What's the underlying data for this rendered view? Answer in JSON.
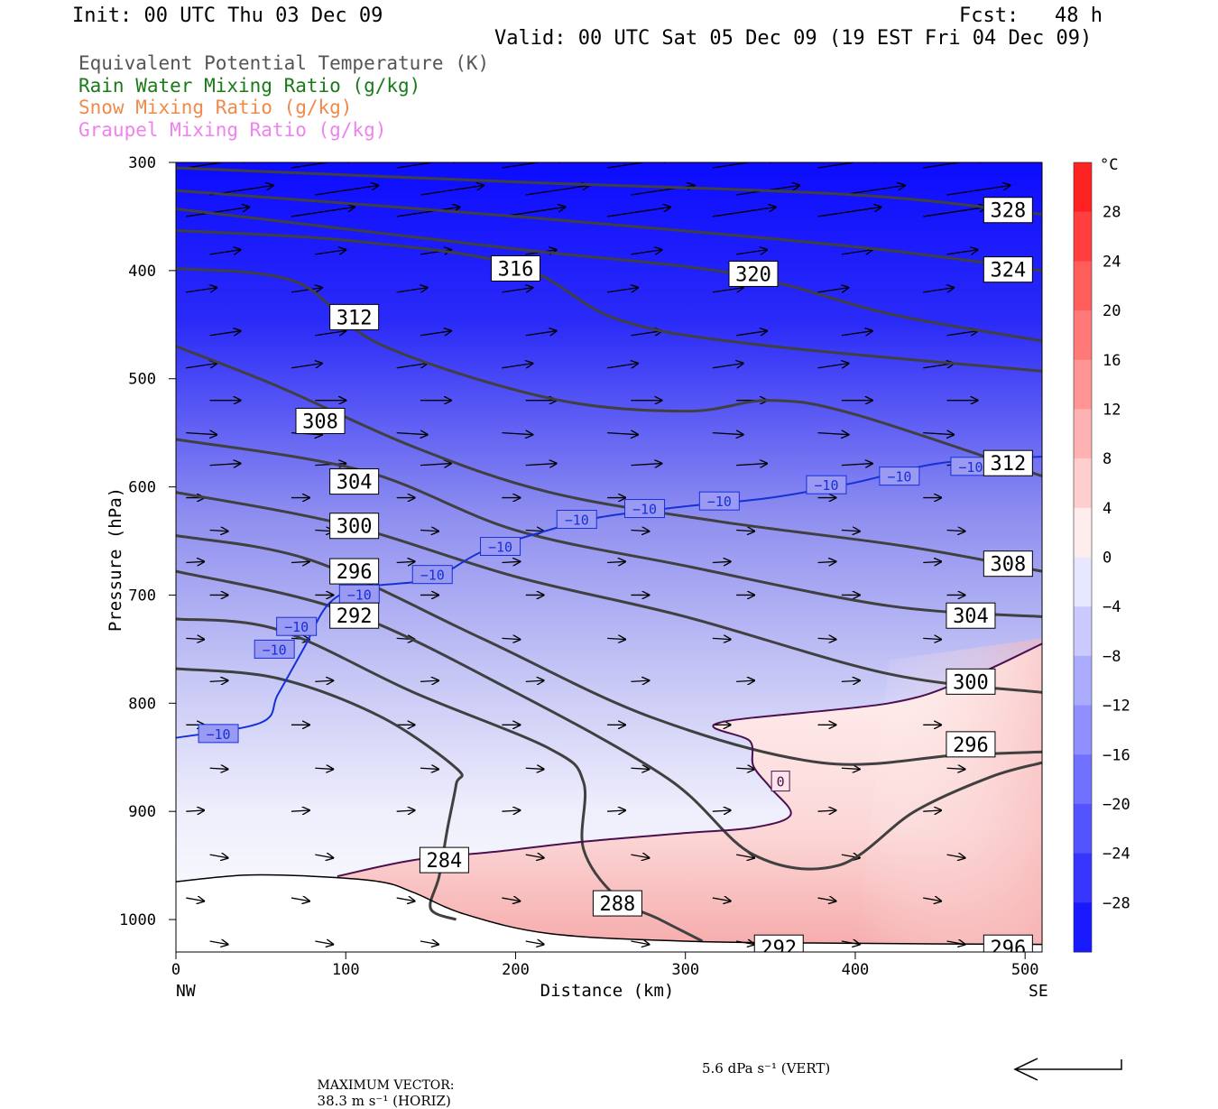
{
  "header": {
    "init": "Init: 00 UTC Thu 03 Dec 09",
    "fcst": "Fcst:   48 h",
    "valid": "Valid: 00 UTC Sat 05 Dec 09 (19 EST Fri 04 Dec 09)"
  },
  "legend": [
    {
      "label": "Equivalent Potential Temperature (K)",
      "color": "#555555"
    },
    {
      "label": "Rain Water Mixing Ratio (g/kg)",
      "color": "#1a7a1a"
    },
    {
      "label": "Snow Mixing Ratio (g/kg)",
      "color": "#f08a4b"
    },
    {
      "label": "Graupel Mixing Ratio (g/kg)",
      "color": "#ee82ee"
    }
  ],
  "chart_data": {
    "type": "heatmap",
    "description_source": "vertical cross-section",
    "xlabel": "Distance (km)",
    "ylabel": "Pressure (hPa)",
    "xlim": [
      0,
      510
    ],
    "ylim": [
      300,
      1030
    ],
    "x_ticks": [
      0,
      100,
      200,
      300,
      400,
      500
    ],
    "y_ticks": [
      300,
      400,
      500,
      600,
      700,
      800,
      900,
      1000
    ],
    "x_end_labels": {
      "left": "NW",
      "right": "SE"
    },
    "colorbar": {
      "unit": "°C",
      "range": [
        -32,
        32
      ],
      "ticks": [
        "28",
        "24",
        "20",
        "16",
        "12",
        "8",
        "4",
        "0",
        "−4",
        "−8",
        "−12",
        "−16",
        "−20",
        "−24",
        "−28"
      ]
    },
    "theta_e_contours": [
      {
        "value": 328,
        "points": [
          [
            0,
            305
          ],
          [
            200,
            318
          ],
          [
            400,
            330
          ],
          [
            510,
            348
          ]
        ]
      },
      {
        "value": 324,
        "points": [
          [
            0,
            326
          ],
          [
            200,
            350
          ],
          [
            400,
            378
          ],
          [
            510,
            400
          ]
        ]
      },
      {
        "value": 320,
        "points": [
          [
            0,
            343
          ],
          [
            200,
            380
          ],
          [
            330,
            403
          ],
          [
            420,
            440
          ],
          [
            510,
            465
          ]
        ]
      },
      {
        "value": 316,
        "points": [
          [
            0,
            363
          ],
          [
            100,
            372
          ],
          [
            200,
            395
          ],
          [
            260,
            445
          ],
          [
            340,
            468
          ],
          [
            510,
            493
          ]
        ]
      },
      {
        "value": 312,
        "points": [
          [
            0,
            398
          ],
          [
            70,
            410
          ],
          [
            120,
            468
          ],
          [
            220,
            518
          ],
          [
            300,
            530
          ],
          [
            350,
            520
          ],
          [
            400,
            533
          ],
          [
            510,
            590
          ]
        ]
      },
      {
        "value": 308,
        "points": [
          [
            0,
            470
          ],
          [
            60,
            507
          ],
          [
            140,
            563
          ],
          [
            220,
            605
          ],
          [
            320,
            632
          ],
          [
            430,
            655
          ],
          [
            510,
            678
          ]
        ]
      },
      {
        "value": 304,
        "points": [
          [
            0,
            556
          ],
          [
            110,
            585
          ],
          [
            200,
            640
          ],
          [
            300,
            673
          ],
          [
            420,
            710
          ],
          [
            510,
            720
          ]
        ]
      },
      {
        "value": 300,
        "points": [
          [
            0,
            605
          ],
          [
            100,
            635
          ],
          [
            200,
            683
          ],
          [
            300,
            720
          ],
          [
            420,
            773
          ],
          [
            510,
            790
          ]
        ]
      },
      {
        "value": 296,
        "points": [
          [
            0,
            645
          ],
          [
            80,
            668
          ],
          [
            180,
            740
          ],
          [
            280,
            813
          ],
          [
            380,
            855
          ],
          [
            460,
            848
          ],
          [
            510,
            845
          ]
        ]
      },
      {
        "value": 292,
        "points": [
          [
            0,
            678
          ],
          [
            100,
            715
          ],
          [
            200,
            790
          ],
          [
            290,
            870
          ],
          [
            340,
            940
          ],
          [
            390,
            950
          ],
          [
            435,
            900
          ],
          [
            480,
            868
          ],
          [
            510,
            855
          ]
        ]
      },
      {
        "value": 288,
        "points": [
          [
            0,
            722
          ],
          [
            60,
            732
          ],
          [
            140,
            790
          ],
          [
            220,
            842
          ],
          [
            240,
            873
          ],
          [
            240,
            935
          ],
          [
            260,
            980
          ],
          [
            285,
            1000
          ],
          [
            310,
            1020
          ]
        ]
      },
      {
        "value": 284,
        "points": [
          [
            0,
            768
          ],
          [
            60,
            777
          ],
          [
            120,
            812
          ],
          [
            165,
            860
          ],
          [
            165,
            875
          ],
          [
            160,
            915
          ],
          [
            155,
            960
          ],
          [
            150,
            990
          ],
          [
            165,
            1000
          ]
        ]
      }
    ],
    "contour_labels": [
      {
        "text": "328",
        "x": 490,
        "p": 344
      },
      {
        "text": "324",
        "x": 490,
        "p": 399
      },
      {
        "text": "316",
        "x": 200,
        "p": 398
      },
      {
        "text": "320",
        "x": 340,
        "p": 403
      },
      {
        "text": "312",
        "x": 105,
        "p": 443
      },
      {
        "text": "308",
        "x": 85,
        "p": 539
      },
      {
        "text": "304",
        "x": 105,
        "p": 595
      },
      {
        "text": "300",
        "x": 105,
        "p": 636
      },
      {
        "text": "296",
        "x": 105,
        "p": 678
      },
      {
        "text": "292",
        "x": 105,
        "p": 719
      },
      {
        "text": "312",
        "x": 490,
        "p": 578
      },
      {
        "text": "308",
        "x": 490,
        "p": 671
      },
      {
        "text": "304",
        "x": 468,
        "p": 719
      },
      {
        "text": "300",
        "x": 468,
        "p": 780
      },
      {
        "text": "296",
        "x": 468,
        "p": 838
      },
      {
        "text": "284",
        "x": 158,
        "p": 945
      },
      {
        "text": "288",
        "x": 260,
        "p": 985
      },
      {
        "text": "292",
        "x": 355,
        "p": 1026
      },
      {
        "text": "296",
        "x": 490,
        "p": 1026
      }
    ],
    "isotherm_minus10": {
      "value": -10,
      "points": [
        [
          0,
          832
        ],
        [
          50,
          818
        ],
        [
          60,
          792
        ],
        [
          75,
          750
        ],
        [
          90,
          708
        ],
        [
          110,
          693
        ],
        [
          150,
          685
        ],
        [
          180,
          660
        ],
        [
          215,
          642
        ],
        [
          250,
          628
        ],
        [
          300,
          618
        ],
        [
          350,
          610
        ],
        [
          400,
          596
        ],
        [
          450,
          578
        ],
        [
          510,
          572
        ]
      ],
      "labels": [
        [
          25,
          828
        ],
        [
          58,
          750
        ],
        [
          71,
          729
        ],
        [
          108,
          699
        ],
        [
          151,
          681
        ],
        [
          191,
          655
        ],
        [
          236,
          630
        ],
        [
          276,
          620
        ],
        [
          320,
          613
        ],
        [
          383,
          598
        ],
        [
          426,
          590
        ],
        [
          468,
          581
        ]
      ]
    },
    "isotherm_zero": {
      "value": 0,
      "points": [
        [
          95,
          960
        ],
        [
          140,
          945
        ],
        [
          190,
          937
        ],
        [
          240,
          928
        ],
        [
          300,
          920
        ],
        [
          340,
          915
        ],
        [
          362,
          903
        ],
        [
          350,
          878
        ],
        [
          340,
          858
        ],
        [
          338,
          835
        ],
        [
          320,
          818
        ],
        [
          420,
          800
        ],
        [
          465,
          778
        ],
        [
          510,
          745
        ]
      ],
      "label": [
        356,
        872
      ]
    },
    "ground_profile": [
      [
        0,
        965
      ],
      [
        40,
        959
      ],
      [
        80,
        960
      ],
      [
        120,
        965
      ],
      [
        140,
        975
      ],
      [
        170,
        995
      ],
      [
        220,
        1013
      ],
      [
        300,
        1020
      ],
      [
        400,
        1022
      ],
      [
        510,
        1023
      ]
    ],
    "wind_vectors_note": "horizontal-dominant circulation vectors, pointing east (toward SE)",
    "max_vector": {
      "label": "MAXIMUM VECTOR:",
      "horizontal": "38.3 m s⁻¹ (HORIZ)",
      "vertical": "5.6 dPa s⁻¹ (VERT)"
    }
  }
}
